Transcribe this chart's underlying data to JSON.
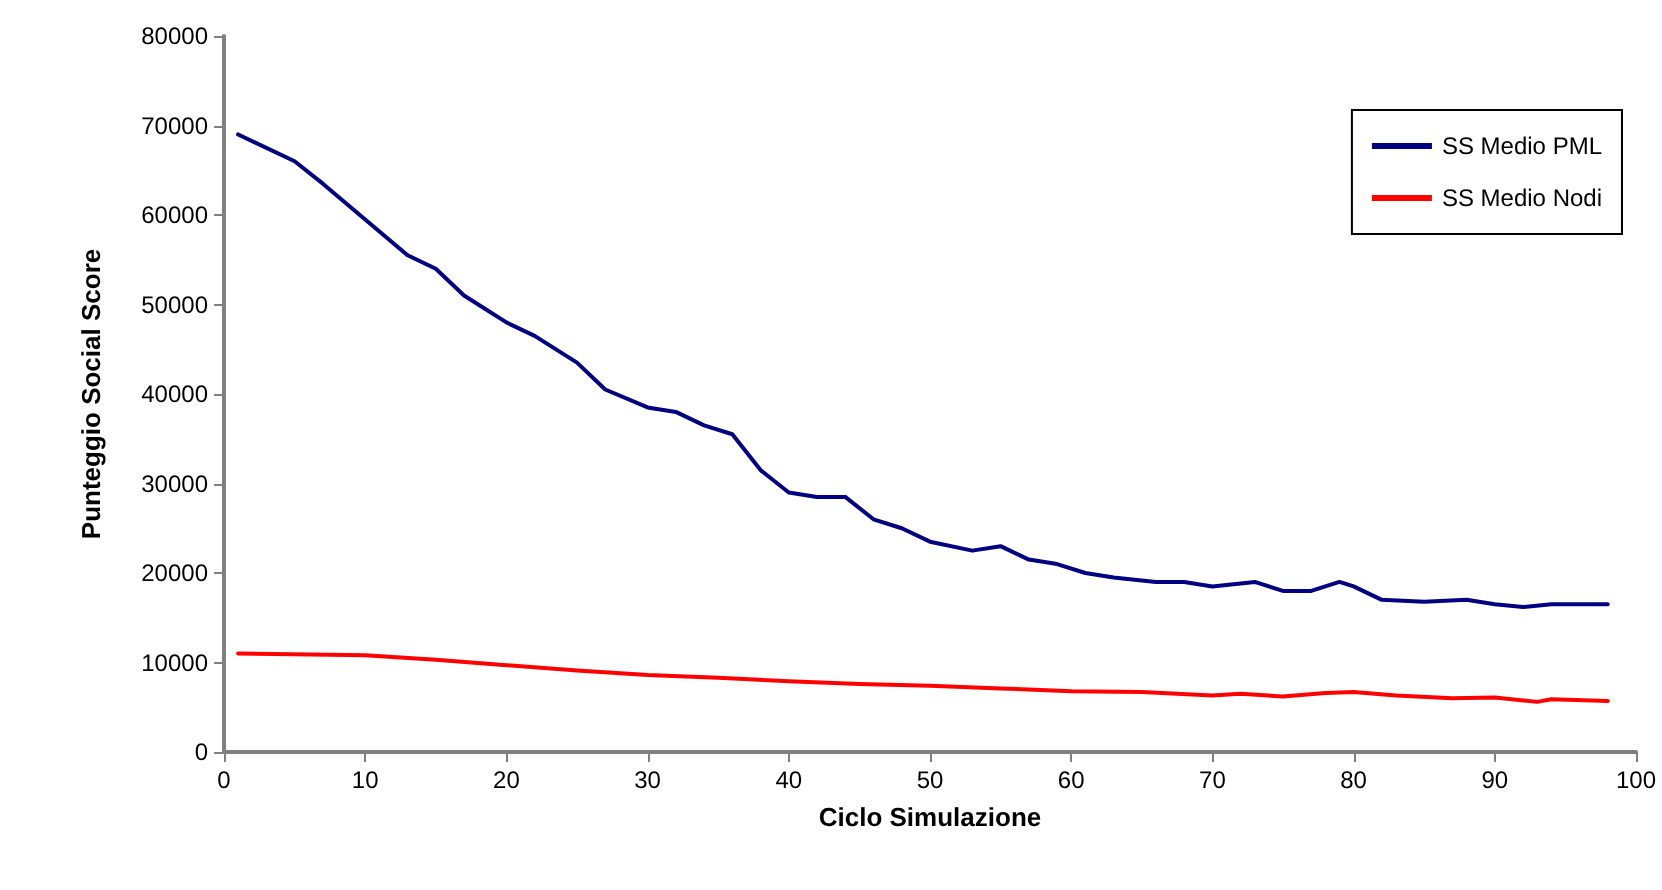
{
  "chart_data": {
    "type": "line",
    "xlabel": "Ciclo Simulazione",
    "ylabel": "Punteggio Social Score",
    "xlim": [
      0,
      100
    ],
    "xticks": [
      0,
      10,
      20,
      30,
      40,
      50,
      60,
      70,
      80,
      90,
      100
    ],
    "ylim": [
      0,
      80000
    ],
    "yticks": [
      0,
      10000,
      20000,
      30000,
      40000,
      50000,
      60000,
      70000,
      80000
    ],
    "grid": false,
    "legend": "top right",
    "marker": "none",
    "line_style": "solid",
    "series": [
      {
        "name": "SS Medio PML",
        "color": "#000080",
        "x": [
          1,
          5,
          7,
          10,
          13,
          15,
          17,
          20,
          22,
          25,
          27,
          30,
          32,
          34,
          36,
          38,
          40,
          42,
          44,
          46,
          48,
          50,
          53,
          55,
          57,
          59,
          61,
          63,
          66,
          68,
          70,
          73,
          75,
          77,
          79,
          80,
          82,
          85,
          88,
          90,
          92,
          94,
          98
        ],
        "values": [
          69000,
          66000,
          63500,
          59500,
          55500,
          54000,
          51000,
          48000,
          46500,
          43500,
          40500,
          38500,
          38000,
          36500,
          35500,
          31500,
          29000,
          28500,
          28500,
          26000,
          25000,
          23500,
          22500,
          23000,
          21500,
          21000,
          20000,
          19500,
          19000,
          19000,
          18500,
          19000,
          18000,
          18000,
          19000,
          18500,
          17000,
          16800,
          17000,
          16500,
          16200,
          16500,
          16500
        ]
      },
      {
        "name": "SS Medio Nodi",
        "color": "#ff0000",
        "x": [
          1,
          10,
          15,
          20,
          25,
          30,
          35,
          40,
          45,
          50,
          55,
          60,
          65,
          70,
          72,
          75,
          78,
          80,
          83,
          87,
          90,
          93,
          94,
          98
        ],
        "values": [
          11000,
          10800,
          10300,
          9700,
          9100,
          8600,
          8300,
          7900,
          7600,
          7400,
          7100,
          6800,
          6700,
          6300,
          6500,
          6200,
          6600,
          6700,
          6300,
          6000,
          6100,
          5600,
          5900,
          5700
        ]
      }
    ]
  }
}
